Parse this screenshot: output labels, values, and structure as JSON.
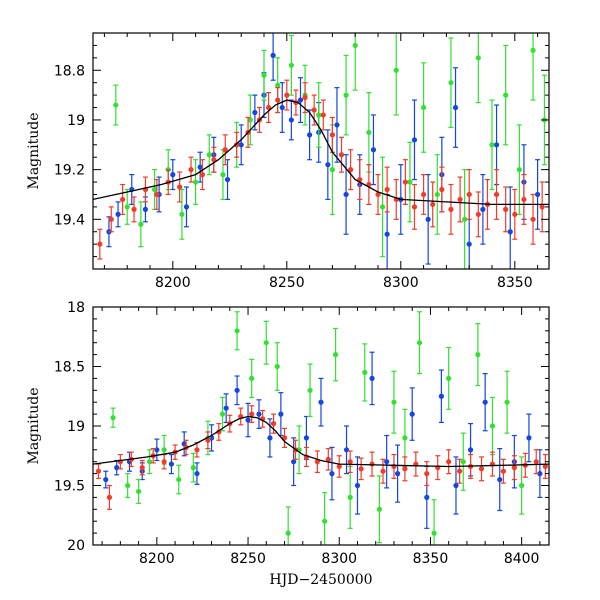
{
  "figure": {
    "xlabel": "HJD−2450000",
    "colors": {
      "series_1": "#1446e0",
      "series_2": "#33e033",
      "series_3": "#f03c28",
      "fit": "#000000"
    }
  },
  "chart_data": [
    {
      "type": "scatter",
      "panel": "top",
      "xlabel": "",
      "ylabel": "Magnitude",
      "xlim": [
        8165,
        8365
      ],
      "ylim": [
        19.6,
        18.65
      ],
      "y_inverted": true,
      "xticks": [
        8200,
        8250,
        8300,
        8350
      ],
      "yticks": [
        18.8,
        19,
        19.2,
        19.4
      ],
      "yticklabels": [
        "18.8",
        "19",
        "19.2",
        "19.4"
      ],
      "fit_curve": {
        "x": [
          8165,
          8180,
          8195,
          8210,
          8220,
          8230,
          8240,
          8245,
          8250,
          8255,
          8260,
          8265,
          8270,
          8280,
          8290,
          8300,
          8320,
          8340,
          8365
        ],
        "y": [
          19.32,
          19.29,
          19.26,
          19.22,
          19.16,
          19.08,
          18.98,
          18.94,
          18.92,
          18.93,
          18.97,
          19.04,
          19.13,
          19.24,
          19.29,
          19.32,
          19.33,
          19.34,
          19.34
        ]
      },
      "series": [
        {
          "color": "#1446e0",
          "x": [
            8172,
            8176,
            8182,
            8188,
            8194,
            8200,
            8206,
            8212,
            8218,
            8224,
            8230,
            8236,
            8240,
            8244,
            8248,
            8252,
            8256,
            8260,
            8264,
            8268,
            8272,
            8276,
            8282,
            8288,
            8294,
            8300,
            8306,
            8312,
            8318,
            8324,
            8330,
            8336,
            8342,
            8348,
            8354,
            8360
          ],
          "y": [
            19.45,
            19.38,
            19.28,
            19.36,
            19.3,
            19.22,
            19.35,
            19.19,
            19.14,
            19.24,
            19.1,
            18.97,
            18.9,
            18.74,
            18.95,
            19.0,
            18.92,
            19.06,
            19.05,
            19.18,
            19.02,
            19.3,
            19.26,
            19.12,
            19.46,
            19.32,
            19.08,
            19.4,
            19.22,
            18.95,
            19.5,
            19.36,
            19.1,
            19.45,
            19.25,
            19.3
          ],
          "err": [
            0.06,
            0.05,
            0.06,
            0.05,
            0.07,
            0.06,
            0.08,
            0.06,
            0.07,
            0.08,
            0.08,
            0.07,
            0.09,
            0.1,
            0.1,
            0.08,
            0.09,
            0.1,
            0.12,
            0.14,
            0.15,
            0.16,
            0.12,
            0.14,
            0.16,
            0.14,
            0.16,
            0.18,
            0.15,
            0.16,
            0.2,
            0.14,
            0.16,
            0.18,
            0.15,
            0.14
          ]
        },
        {
          "color": "#33e033",
          "x": [
            8175,
            8180,
            8186,
            8192,
            8198,
            8204,
            8210,
            8216,
            8222,
            8228,
            8234,
            8240,
            8246,
            8252,
            8258,
            8264,
            8270,
            8276,
            8280,
            8286,
            8292,
            8298,
            8304,
            8310,
            8316,
            8322,
            8328,
            8334,
            8340,
            8346,
            8352,
            8358,
            8363
          ],
          "y": [
            18.94,
            19.35,
            19.42,
            19.28,
            19.2,
            19.38,
            19.25,
            19.14,
            19.22,
            19.1,
            19.0,
            18.82,
            18.86,
            18.78,
            18.9,
            18.98,
            19.2,
            18.9,
            18.7,
            19.05,
            19.35,
            18.8,
            19.25,
            18.95,
            19.3,
            18.85,
            19.4,
            18.75,
            19.1,
            18.9,
            19.2,
            18.72,
            19.0
          ],
          "err": [
            0.08,
            0.07,
            0.09,
            0.08,
            0.08,
            0.1,
            0.09,
            0.08,
            0.1,
            0.09,
            0.1,
            0.1,
            0.11,
            0.12,
            0.12,
            0.13,
            0.18,
            0.16,
            0.18,
            0.16,
            0.2,
            0.18,
            0.16,
            0.18,
            0.16,
            0.18,
            0.2,
            0.18,
            0.18,
            0.2,
            0.18,
            0.2,
            0.18
          ]
        },
        {
          "color": "#f03c28",
          "x": [
            8168,
            8173,
            8178,
            8183,
            8188,
            8193,
            8198,
            8203,
            8208,
            8213,
            8218,
            8223,
            8228,
            8233,
            8238,
            8242,
            8246,
            8250,
            8254,
            8258,
            8262,
            8266,
            8270,
            8274,
            8278,
            8282,
            8286,
            8290,
            8294,
            8298,
            8302,
            8306,
            8310,
            8314,
            8318,
            8322,
            8326,
            8330,
            8334,
            8338,
            8342,
            8346,
            8350,
            8354,
            8358,
            8362
          ],
          "y": [
            19.5,
            19.4,
            19.32,
            19.36,
            19.28,
            19.3,
            19.25,
            19.27,
            19.2,
            19.22,
            19.16,
            19.12,
            19.1,
            19.05,
            19.0,
            18.95,
            18.92,
            18.9,
            18.93,
            18.91,
            18.96,
            18.98,
            19.06,
            19.14,
            19.2,
            19.24,
            19.26,
            19.3,
            19.28,
            19.32,
            19.25,
            19.35,
            19.3,
            19.34,
            19.28,
            19.36,
            19.32,
            19.3,
            19.38,
            19.34,
            19.3,
            19.36,
            19.38,
            19.32,
            19.4,
            19.35
          ],
          "err": [
            0.06,
            0.05,
            0.06,
            0.05,
            0.05,
            0.06,
            0.05,
            0.06,
            0.05,
            0.06,
            0.05,
            0.06,
            0.05,
            0.06,
            0.05,
            0.06,
            0.05,
            0.06,
            0.05,
            0.06,
            0.06,
            0.06,
            0.07,
            0.07,
            0.08,
            0.08,
            0.08,
            0.08,
            0.09,
            0.08,
            0.09,
            0.09,
            0.08,
            0.09,
            0.09,
            0.1,
            0.09,
            0.1,
            0.09,
            0.1,
            0.1,
            0.09,
            0.1,
            0.1,
            0.1,
            0.1
          ]
        }
      ]
    },
    {
      "type": "scatter",
      "panel": "bottom",
      "xlabel": "HJD−2450000",
      "ylabel": "Magnitude",
      "xlim": [
        8165,
        8415
      ],
      "ylim": [
        20,
        18
      ],
      "y_inverted": true,
      "xticks": [
        8200,
        8250,
        8300,
        8350,
        8400
      ],
      "yticks": [
        18,
        18.5,
        19,
        19.5,
        20
      ],
      "yticklabels": [
        "18",
        "18.5",
        "19",
        "19.5",
        "20"
      ],
      "fit_curve": {
        "x": [
          8165,
          8180,
          8195,
          8210,
          8220,
          8230,
          8240,
          8245,
          8250,
          8255,
          8260,
          8265,
          8270,
          8280,
          8290,
          8300,
          8330,
          8360,
          8390,
          8415
        ],
        "y": [
          19.32,
          19.29,
          19.26,
          19.22,
          19.16,
          19.08,
          18.98,
          18.94,
          18.92,
          18.93,
          18.97,
          19.04,
          19.13,
          19.24,
          19.29,
          19.32,
          19.33,
          19.34,
          19.33,
          19.32
        ]
      },
      "series": [
        {
          "color": "#1446e0",
          "x": [
            8172,
            8178,
            8185,
            8192,
            8200,
            8208,
            8215,
            8222,
            8230,
            8238,
            8244,
            8250,
            8256,
            8262,
            8268,
            8275,
            8282,
            8290,
            8296,
            8304,
            8310,
            8318,
            8326,
            8332,
            8340,
            8348,
            8356,
            8364,
            8372,
            8380,
            8388,
            8396,
            8404,
            8410
          ],
          "y": [
            19.45,
            19.35,
            19.3,
            19.38,
            19.2,
            19.32,
            19.15,
            19.4,
            19.1,
            18.85,
            18.7,
            18.95,
            18.9,
            19.1,
            18.9,
            19.3,
            19.1,
            18.8,
            19.4,
            19.2,
            19.5,
            18.6,
            19.3,
            19.4,
            18.9,
            19.6,
            18.75,
            19.5,
            19.2,
            18.8,
            19.45,
            19.3,
            19.1,
            19.4
          ],
          "err": [
            0.07,
            0.06,
            0.08,
            0.07,
            0.09,
            0.08,
            0.1,
            0.09,
            0.11,
            0.12,
            0.12,
            0.14,
            0.12,
            0.16,
            0.18,
            0.2,
            0.18,
            0.2,
            0.22,
            0.2,
            0.24,
            0.22,
            0.22,
            0.24,
            0.22,
            0.26,
            0.22,
            0.24,
            0.22,
            0.24,
            0.26,
            0.22,
            0.2,
            0.2
          ]
        },
        {
          "color": "#33e033",
          "x": [
            8176,
            8184,
            8190,
            8196,
            8204,
            8212,
            8220,
            8228,
            8236,
            8244,
            8252,
            8260,
            8266,
            8272,
            8278,
            8284,
            8292,
            8298,
            8306,
            8314,
            8322,
            8330,
            8336,
            8344,
            8352,
            8360,
            8368,
            8376,
            8384,
            8392,
            8400
          ],
          "y": [
            18.93,
            19.5,
            19.55,
            19.3,
            19.2,
            19.45,
            19.35,
            19.1,
            18.9,
            18.2,
            18.6,
            18.3,
            18.5,
            19.9,
            19.2,
            18.7,
            19.8,
            18.4,
            19.6,
            18.55,
            19.7,
            18.8,
            19.1,
            18.3,
            19.9,
            18.6,
            19.3,
            18.4,
            19.0,
            18.8,
            19.5
          ],
          "err": [
            0.08,
            0.1,
            0.1,
            0.1,
            0.12,
            0.12,
            0.12,
            0.14,
            0.14,
            0.16,
            0.16,
            0.18,
            0.2,
            0.22,
            0.2,
            0.22,
            0.24,
            0.22,
            0.26,
            0.24,
            0.28,
            0.26,
            0.24,
            0.26,
            0.28,
            0.26,
            0.24,
            0.26,
            0.24,
            0.26,
            0.24
          ]
        },
        {
          "color": "#f03c28",
          "x": [
            8168,
            8174,
            8180,
            8186,
            8192,
            8198,
            8204,
            8210,
            8216,
            8222,
            8228,
            8234,
            8240,
            8246,
            8252,
            8258,
            8264,
            8270,
            8276,
            8282,
            8288,
            8294,
            8300,
            8306,
            8312,
            8318,
            8324,
            8330,
            8336,
            8342,
            8348,
            8354,
            8360,
            8366,
            8372,
            8378,
            8384,
            8390,
            8396,
            8402,
            8408,
            8413
          ],
          "y": [
            19.38,
            19.6,
            19.3,
            19.28,
            19.35,
            19.25,
            19.3,
            19.22,
            19.18,
            19.2,
            19.12,
            19.05,
            18.98,
            18.92,
            18.9,
            18.94,
            18.98,
            19.1,
            19.2,
            19.26,
            19.3,
            19.28,
            19.34,
            19.3,
            19.36,
            19.32,
            19.38,
            19.34,
            19.36,
            19.32,
            19.4,
            19.35,
            19.3,
            19.38,
            19.34,
            19.36,
            19.32,
            19.38,
            19.35,
            19.33,
            19.3,
            19.34
          ],
          "err": [
            0.06,
            0.1,
            0.06,
            0.06,
            0.06,
            0.06,
            0.06,
            0.06,
            0.06,
            0.06,
            0.07,
            0.07,
            0.07,
            0.07,
            0.07,
            0.07,
            0.08,
            0.08,
            0.08,
            0.08,
            0.09,
            0.09,
            0.09,
            0.09,
            0.09,
            0.1,
            0.1,
            0.1,
            0.1,
            0.1,
            0.1,
            0.1,
            0.1,
            0.1,
            0.1,
            0.1,
            0.1,
            0.1,
            0.1,
            0.1,
            0.1,
            0.1
          ]
        }
      ]
    }
  ]
}
